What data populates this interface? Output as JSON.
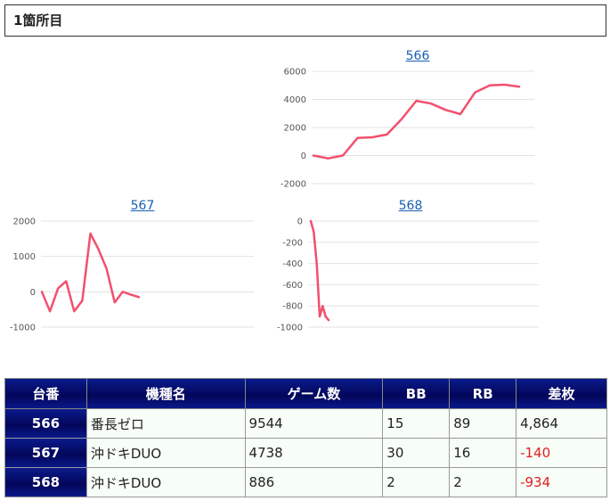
{
  "section_title": "1箇所目",
  "charts": [
    {
      "title": "566",
      "chart_data": {
        "type": "line",
        "title": "566",
        "color": "#f2506e",
        "y_ticks": [
          "6000",
          "4000",
          "2000",
          "0",
          "-2000"
        ],
        "ylim": [
          -2000,
          6000
        ],
        "values": [
          0,
          -200,
          0,
          1250,
          1300,
          1500,
          2600,
          3900,
          3700,
          3250,
          2950,
          4500,
          5000,
          5050,
          4900
        ]
      }
    },
    {
      "title": "567",
      "chart_data": {
        "type": "line",
        "title": "567",
        "color": "#f2506e",
        "y_ticks": [
          "2000",
          "1000",
          "0",
          "-1000"
        ],
        "ylim": [
          -1000,
          2000
        ],
        "values": [
          0,
          -550,
          100,
          300,
          -550,
          -250,
          1650,
          1200,
          650,
          -300,
          0,
          -80,
          -150
        ]
      }
    },
    {
      "title": "568",
      "chart_data": {
        "type": "line",
        "title": "568",
        "color": "#f2506e",
        "y_ticks": [
          "0",
          "-200",
          "-400",
          "-600",
          "-800",
          "-1000"
        ],
        "ylim": [
          -1000,
          0
        ],
        "values": [
          0,
          -100,
          -400,
          -900,
          -800,
          -900,
          -934
        ]
      }
    }
  ],
  "table": {
    "headers": [
      "台番",
      "機種名",
      "ゲーム数",
      "BB",
      "RB",
      "差枚"
    ],
    "rows": [
      {
        "unit": "566",
        "machine": "番長ゼロ",
        "games": "9544",
        "bb": "15",
        "rb": "89",
        "diff": "4,864",
        "negative": false
      },
      {
        "unit": "567",
        "machine": "沖ドキDUO",
        "games": "4738",
        "bb": "30",
        "rb": "16",
        "diff": "-140",
        "negative": true
      },
      {
        "unit": "568",
        "machine": "沖ドキDUO",
        "games": "886",
        "bb": "2",
        "rb": "2",
        "diff": "-934",
        "negative": true
      }
    ]
  }
}
